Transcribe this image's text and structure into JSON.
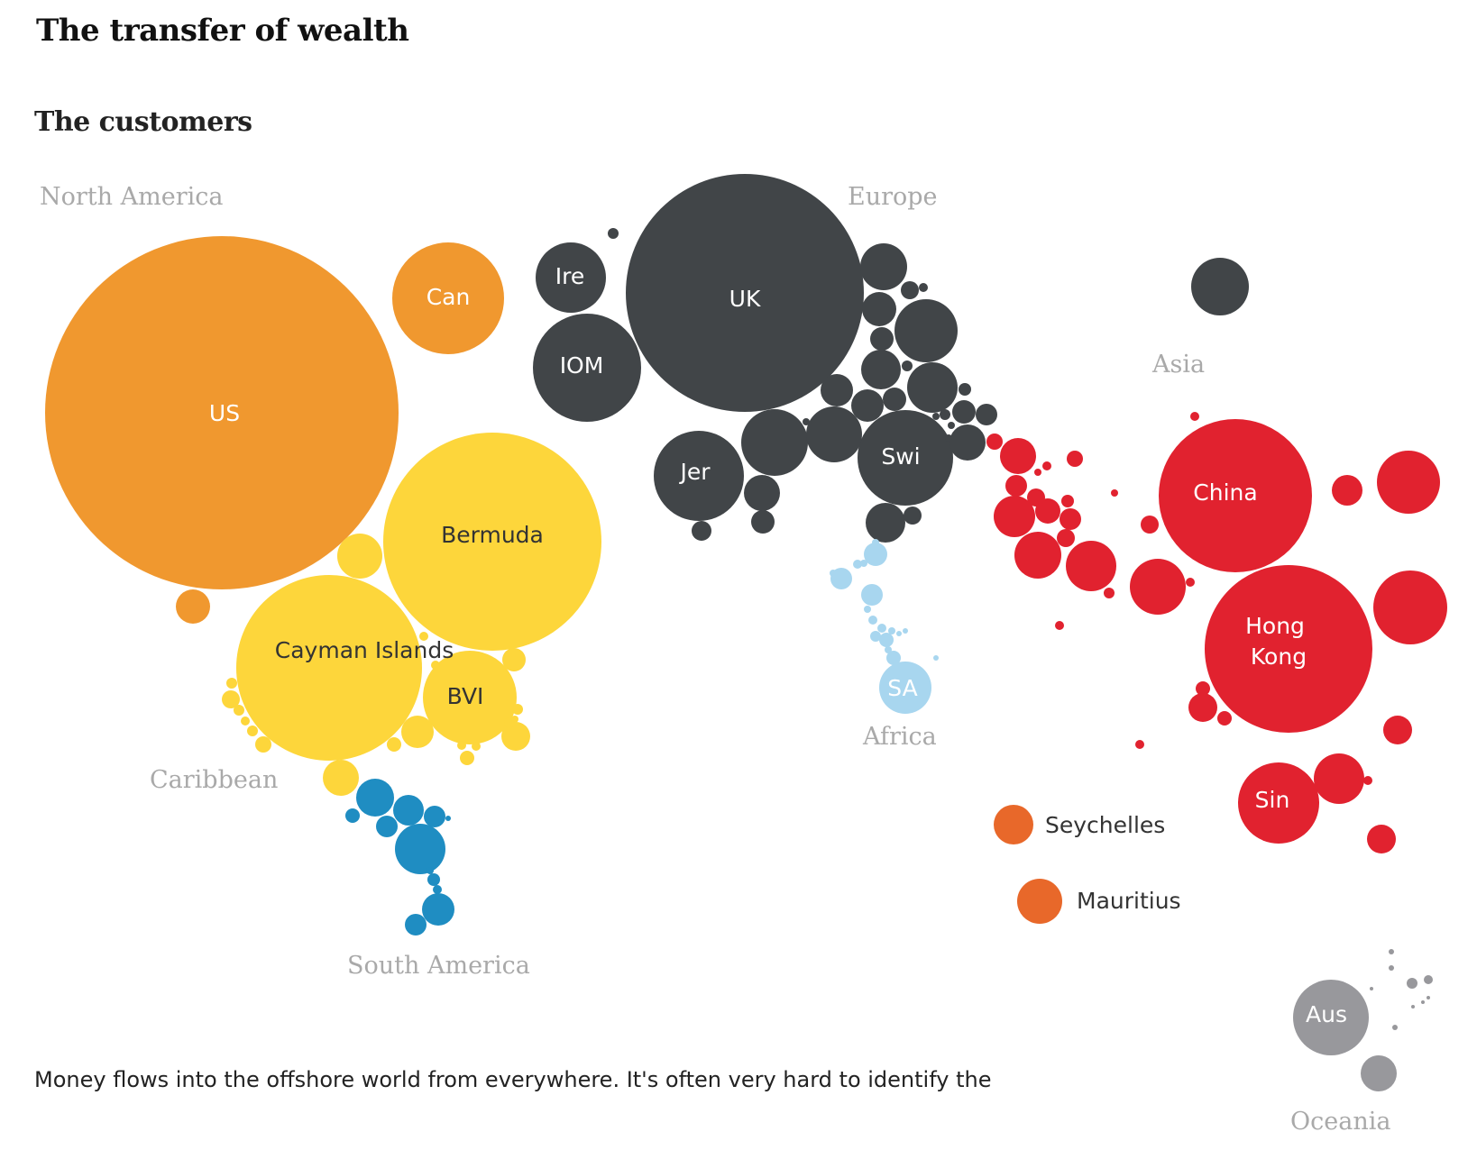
{
  "title": "The transfer of wealth",
  "subtitle": "The customers",
  "intro_text": "Money flows into the offshore world from everywhere. It's often very hard to identify the",
  "colors": {
    "north_america": "#f0982f",
    "caribbean": "#fdd63b",
    "south_america": "#1f8dc2",
    "europe": "#414548",
    "africa": "#a8d6ef",
    "asia": "#e1222f",
    "oceania": "#98989c",
    "africa_islands": "#e8682a"
  },
  "chart_data": {
    "type": "bubble",
    "title": "The customers",
    "regions": [
      "North America",
      "Caribbean",
      "South America",
      "Europe",
      "Africa",
      "Asia",
      "Oceania"
    ],
    "legend": [
      {
        "name": "Seychelles",
        "region": "Africa"
      },
      {
        "name": "Mauritius",
        "region": "Africa"
      }
    ],
    "labeled_bubbles": [
      {
        "label": "US",
        "region": "North America",
        "relative_size": 100
      },
      {
        "label": "Can",
        "region": "North America",
        "relative_size": 10
      },
      {
        "label": "Bermuda",
        "region": "Caribbean",
        "relative_size": 38
      },
      {
        "label": "Cayman Islands",
        "region": "Caribbean",
        "relative_size": 28
      },
      {
        "label": "BVI",
        "region": "Caribbean",
        "relative_size": 7
      },
      {
        "label": "UK",
        "region": "Europe",
        "relative_size": 45
      },
      {
        "label": "Ire",
        "region": "Europe",
        "relative_size": 4
      },
      {
        "label": "IOM",
        "region": "Europe",
        "relative_size": 9
      },
      {
        "label": "Jer",
        "region": "Europe",
        "relative_size": 6.5
      },
      {
        "label": "Swi",
        "region": "Europe",
        "relative_size": 7.5
      },
      {
        "label": "SA",
        "region": "Africa",
        "relative_size": 2.3
      },
      {
        "label": "China",
        "region": "Asia",
        "relative_size": 19
      },
      {
        "label": "Hong Kong",
        "region": "Asia",
        "relative_size": 22.5
      },
      {
        "label": "Sin",
        "region": "Asia",
        "relative_size": 5.2
      },
      {
        "label": "Aus",
        "region": "Oceania",
        "relative_size": 4.8
      }
    ]
  }
}
